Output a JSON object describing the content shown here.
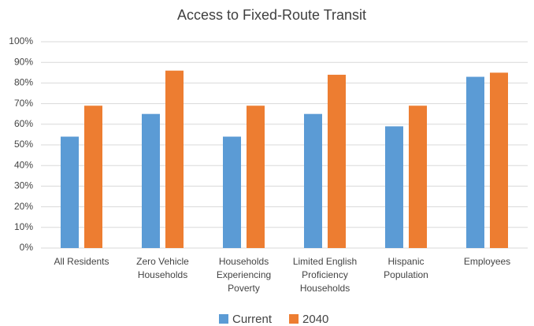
{
  "chart_data": {
    "type": "bar",
    "title": "Access to Fixed-Route Transit",
    "categories": [
      "All Residents",
      "Zero Vehicle Households",
      "Households Experiencing Poverty",
      "Limited English Proficiency Households",
      "Hispanic Population",
      "Employees"
    ],
    "series": [
      {
        "name": "Current",
        "color": "#5b9bd5",
        "values": [
          54,
          65,
          54,
          65,
          59,
          83
        ]
      },
      {
        "name": "2040",
        "color": "#ed7d31",
        "values": [
          69,
          86,
          69,
          84,
          69,
          85
        ]
      }
    ],
    "ylim": [
      0,
      100
    ],
    "yticks": [
      {
        "value": 0,
        "label": "0%"
      },
      {
        "value": 10,
        "label": "10%"
      },
      {
        "value": 20,
        "label": "20%"
      },
      {
        "value": 30,
        "label": "30%"
      },
      {
        "value": 40,
        "label": "40%"
      },
      {
        "value": 50,
        "label": "50%"
      },
      {
        "value": 60,
        "label": "60%"
      },
      {
        "value": 70,
        "label": "70%"
      },
      {
        "value": 80,
        "label": "80%"
      },
      {
        "value": 90,
        "label": "90%"
      },
      {
        "value": 100,
        "label": "100%"
      }
    ],
    "grid": true,
    "legend": "bottom"
  }
}
